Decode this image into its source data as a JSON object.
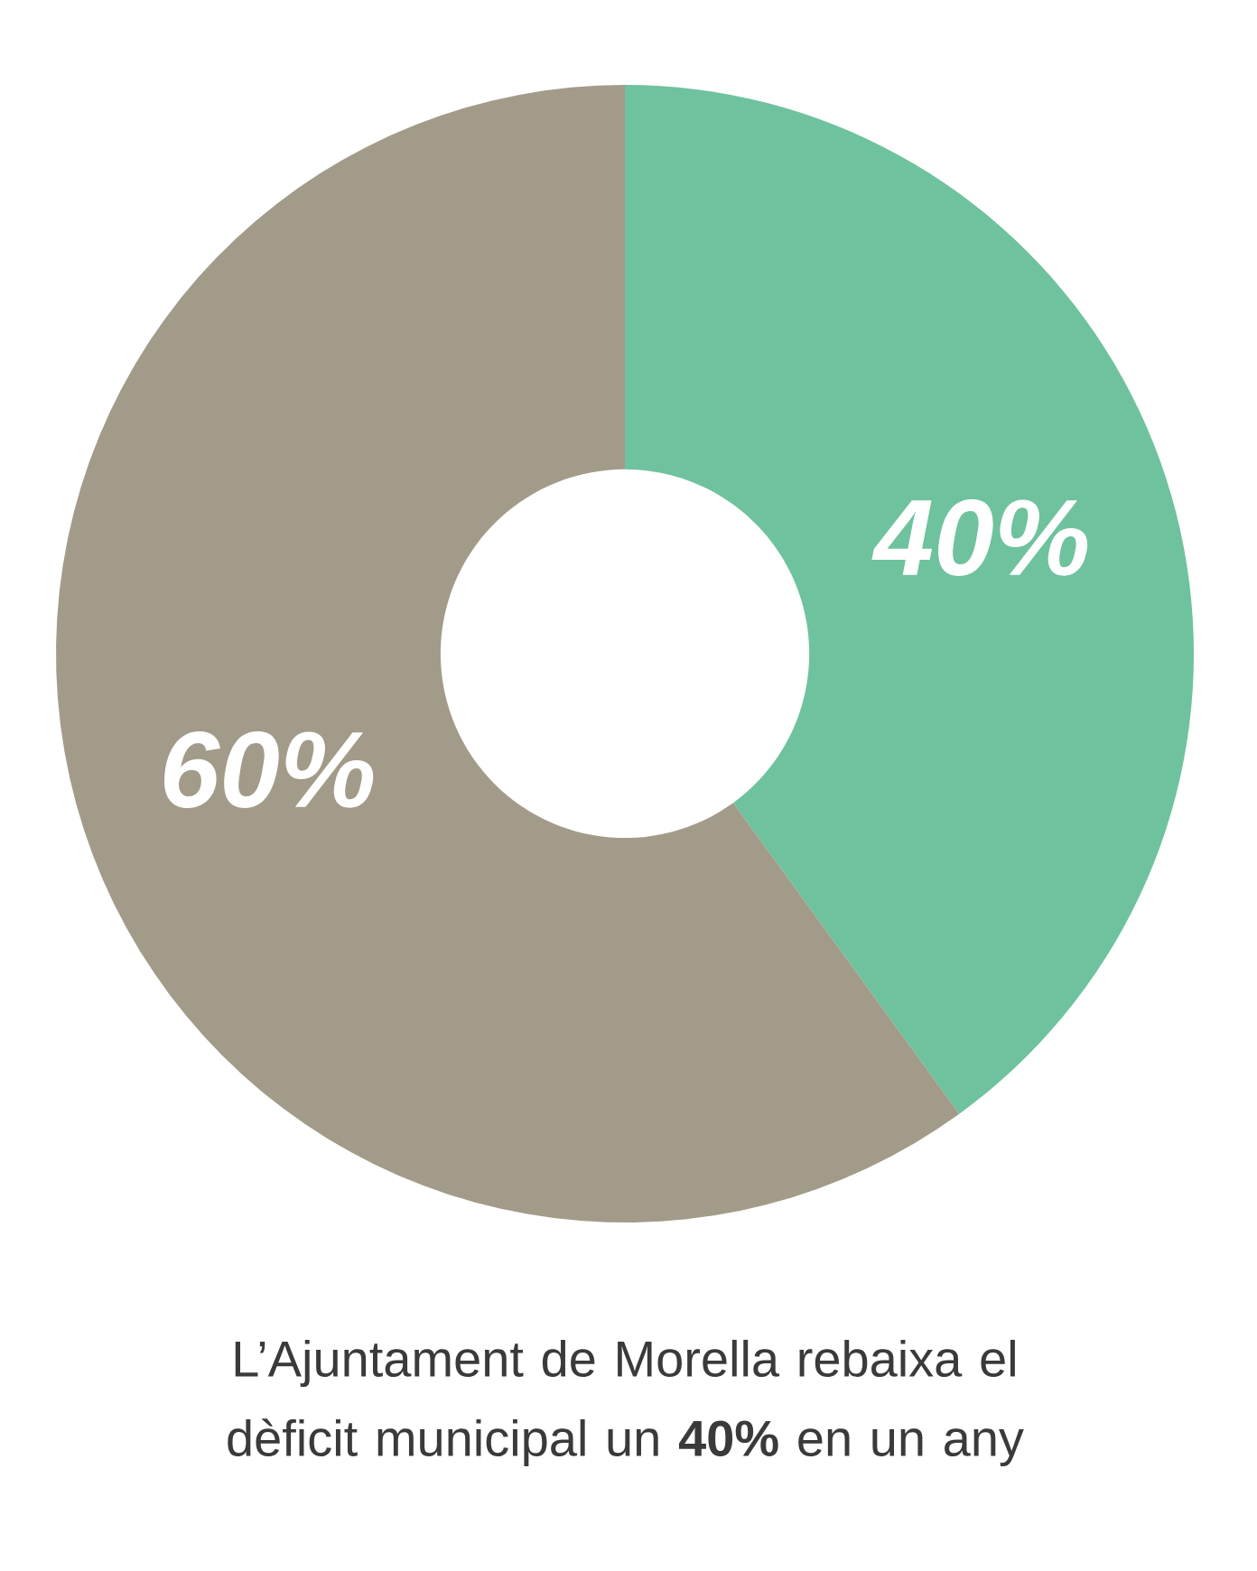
{
  "chart_data": {
    "type": "donut",
    "title": "L’Ajuntament de Morella rebaixa el dèficit municipal un **40%** en un any",
    "categories": [
      null,
      null
    ],
    "values": [
      40,
      60
    ],
    "value_labels": [
      "40%",
      "60%"
    ],
    "colors": [
      "#6fc29e",
      "#a39b89"
    ]
  }
}
